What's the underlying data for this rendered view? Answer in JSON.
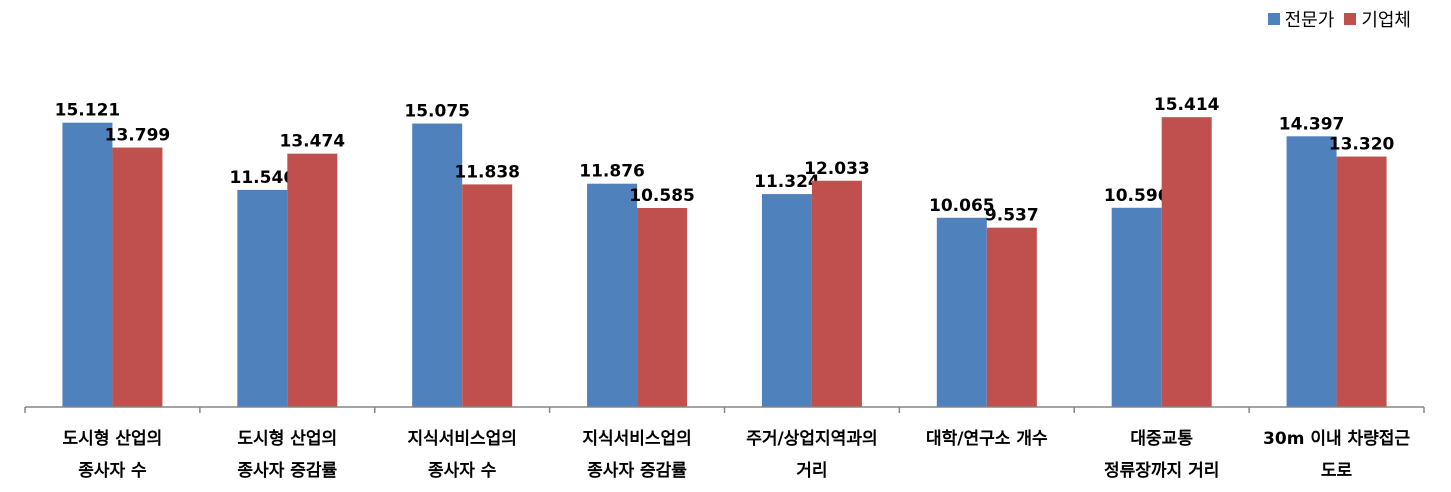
{
  "chart_data": {
    "type": "bar",
    "categories": [
      [
        "도시형 산업의",
        "종사자 수"
      ],
      [
        "도시형 산업의",
        "종사자 증감률"
      ],
      [
        "지식서비스업의",
        "종사자 수"
      ],
      [
        "지식서비스업의",
        "종사자 증감률"
      ],
      [
        "주거/상업지역과의",
        "거리"
      ],
      [
        "대학/연구소 개수"
      ],
      [
        "대중교통",
        "정류장까지 거리"
      ],
      [
        "30m 이내 차량접근",
        "도로"
      ]
    ],
    "series": [
      {
        "name": "전문가",
        "color": "#4F81BD",
        "values": [
          15.121,
          11.546,
          15.075,
          11.876,
          11.324,
          10.065,
          10.596,
          14.397
        ],
        "labels": [
          "15.121",
          "11.546",
          "15.075",
          "11.876",
          "11.324",
          "10.065",
          "10.596",
          "14.397"
        ]
      },
      {
        "name": "기업체",
        "color": "#C0504D",
        "values": [
          13.799,
          13.474,
          11.838,
          10.585,
          12.033,
          9.537,
          15.414,
          13.32
        ],
        "labels": [
          "13.799",
          "13.474",
          "11.838",
          "10.585",
          "12.033",
          "9.537",
          "15.414",
          "13.320"
        ]
      }
    ],
    "ylim": [
      0,
      16.7
    ],
    "legend_position": "top-right",
    "grid": false
  }
}
